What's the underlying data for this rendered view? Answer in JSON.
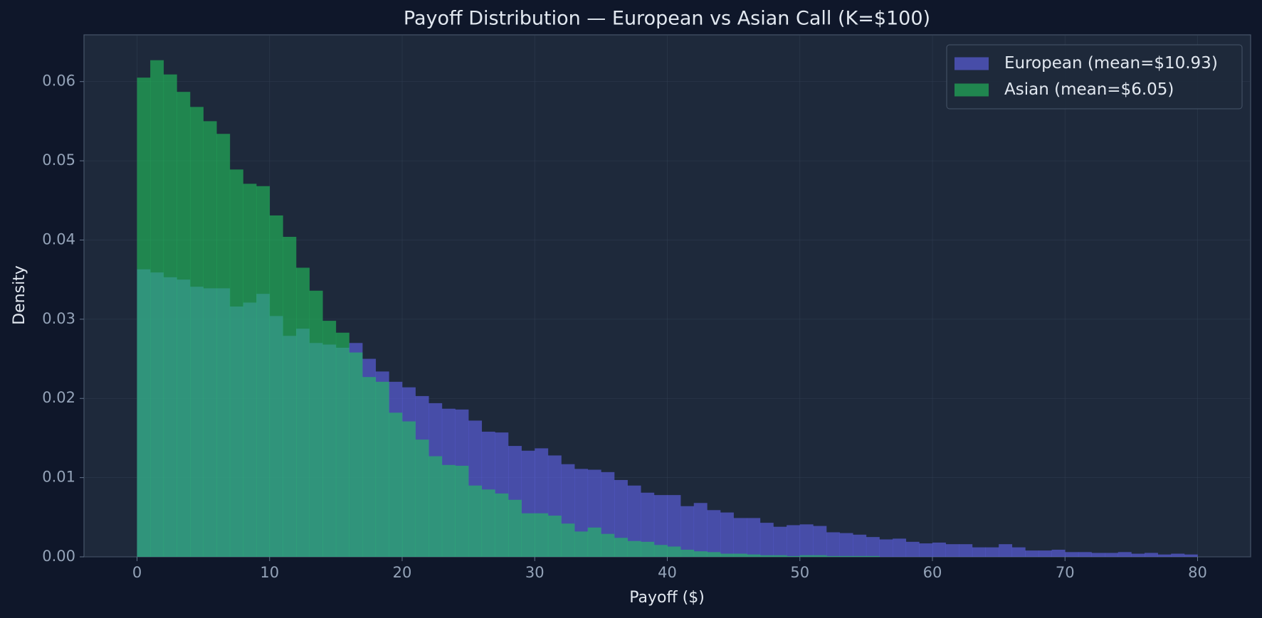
{
  "chart_data": {
    "type": "histogram",
    "title": "Payoff Distribution — European vs Asian Call (K=$100)",
    "x_label": "Payoff ($)",
    "y_label": "Density",
    "bins": [
      0,
      1,
      2,
      3,
      4,
      5,
      6,
      7,
      8,
      9,
      10,
      11,
      12,
      13,
      14,
      15,
      16,
      17,
      18,
      19,
      20,
      21,
      22,
      23,
      24,
      25,
      26,
      27,
      28,
      29,
      30,
      31,
      32,
      33,
      34,
      35,
      36,
      37,
      38,
      39,
      40,
      41,
      42,
      43,
      44,
      45,
      46,
      47,
      48,
      49,
      50,
      51,
      52,
      53,
      54,
      55,
      56,
      57,
      58,
      59,
      60,
      61,
      62,
      63,
      64,
      65,
      66,
      67,
      68,
      69,
      70,
      71,
      72,
      73,
      74,
      75,
      76,
      77,
      78,
      79,
      80
    ],
    "series": [
      {
        "name": "European (mean=$10.93)",
        "color": "#6366f1",
        "values": [
          0.0363,
          0.0359,
          0.0353,
          0.035,
          0.0341,
          0.0339,
          0.0339,
          0.0316,
          0.0321,
          0.0332,
          0.0304,
          0.0279,
          0.0288,
          0.027,
          0.0268,
          0.0264,
          0.027,
          0.025,
          0.0234,
          0.0221,
          0.0214,
          0.0203,
          0.0194,
          0.0187,
          0.0186,
          0.0172,
          0.0158,
          0.0157,
          0.014,
          0.0134,
          0.0137,
          0.0128,
          0.0117,
          0.0111,
          0.011,
          0.0107,
          0.0097,
          0.009,
          0.0081,
          0.0078,
          0.0078,
          0.0064,
          0.0068,
          0.0059,
          0.0056,
          0.0049,
          0.0049,
          0.0043,
          0.0038,
          0.004,
          0.0041,
          0.0039,
          0.0031,
          0.003,
          0.0028,
          0.0025,
          0.0022,
          0.0023,
          0.0019,
          0.0017,
          0.0018,
          0.0016,
          0.0016,
          0.0012,
          0.0012,
          0.0016,
          0.0012,
          0.0008,
          0.0008,
          0.0009,
          0.0006,
          0.0006,
          0.0005,
          0.0005,
          0.0006,
          0.0004,
          0.0005,
          0.0003,
          0.0004,
          0.0003
        ]
      },
      {
        "name": "Asian (mean=$6.05)",
        "color": "#22c55e",
        "values": [
          0.0605,
          0.0627,
          0.0609,
          0.0587,
          0.0568,
          0.055,
          0.0534,
          0.0489,
          0.0471,
          0.0468,
          0.0431,
          0.0404,
          0.0365,
          0.0336,
          0.0298,
          0.0283,
          0.0258,
          0.0227,
          0.0221,
          0.0182,
          0.0171,
          0.0148,
          0.0127,
          0.0116,
          0.0115,
          0.009,
          0.0085,
          0.008,
          0.0072,
          0.0055,
          0.0055,
          0.0052,
          0.0042,
          0.0032,
          0.0037,
          0.0029,
          0.0024,
          0.002,
          0.0019,
          0.0015,
          0.0013,
          0.0009,
          0.0007,
          0.0006,
          0.0004,
          0.0004,
          0.0003,
          0.0002,
          0.0002,
          0.0001,
          0.0002,
          0.0002,
          0.0001,
          0.0001,
          0.0001,
          0.0001,
          0,
          0,
          0,
          0,
          0,
          0,
          0,
          0,
          0,
          0,
          0,
          0,
          0,
          0,
          0,
          0,
          0,
          0,
          0,
          0,
          0,
          0,
          0,
          0
        ]
      }
    ],
    "alpha": 0.6,
    "xlim": [
      -4,
      84
    ],
    "xticks": [
      0,
      10,
      20,
      30,
      40,
      50,
      60,
      70,
      80
    ],
    "ylim": [
      0,
      0.0659
    ],
    "yticks": [
      {
        "value": 0,
        "label": "0.00"
      },
      0.01,
      0.02,
      0.03,
      0.04,
      0.05,
      0.06
    ],
    "grid": true,
    "legend": "upper right"
  }
}
